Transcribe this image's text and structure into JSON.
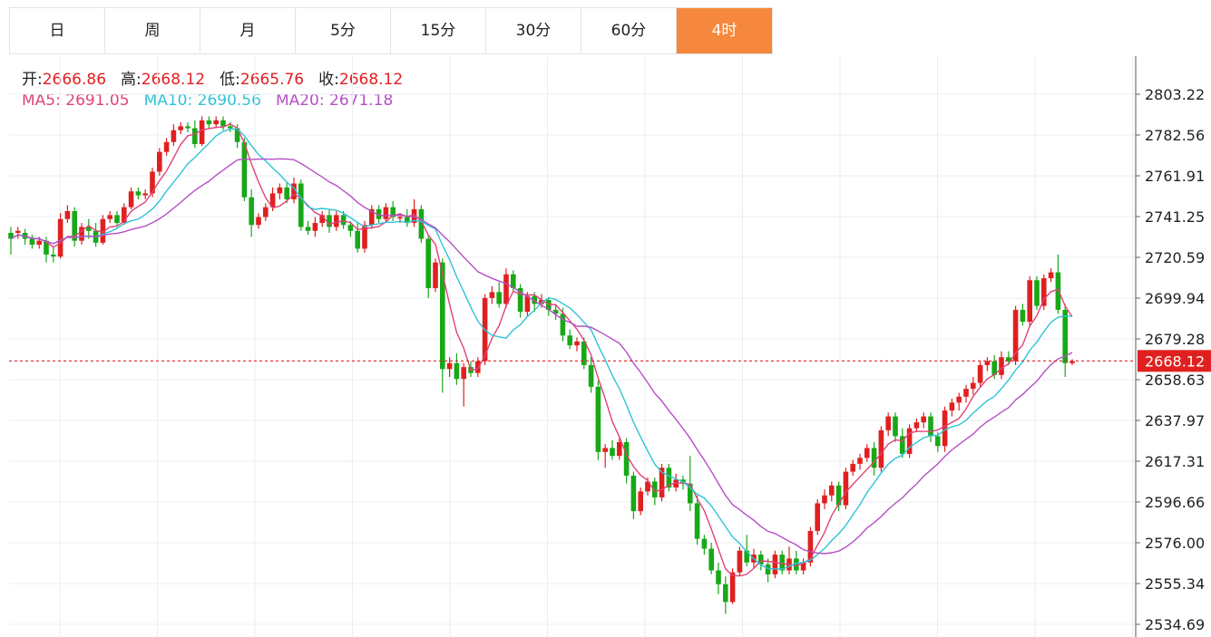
{
  "tabs": [
    {
      "label": "日",
      "active": false
    },
    {
      "label": "周",
      "active": false
    },
    {
      "label": "月",
      "active": false
    },
    {
      "label": "5分",
      "active": false
    },
    {
      "label": "15分",
      "active": false
    },
    {
      "label": "30分",
      "active": false
    },
    {
      "label": "60分",
      "active": false
    },
    {
      "label": "4时",
      "active": true
    }
  ],
  "ohlc_info": {
    "open_label": "开:",
    "open": "2666.86",
    "high_label": "高:",
    "high": "2668.12",
    "low_label": "低:",
    "low": "2665.76",
    "close_label": "收:",
    "close": "2668.12"
  },
  "ma_info": {
    "ma5_label": "MA5:",
    "ma5": "2691.05",
    "ma10_label": "MA10:",
    "ma10": "2690.56",
    "ma20_label": "MA20:",
    "ma20": "2671.18"
  },
  "colors": {
    "up": "#e02020",
    "down": "#18a818",
    "ma5": "#e0427a",
    "ma10": "#2fc3d6",
    "ma20": "#b54fc4",
    "active_tab": "#f5883c",
    "price_line": "#e02020",
    "grid": "#e8eef3"
  },
  "chart_data": {
    "type": "candlestick",
    "y_axis_ticks": [
      2803.22,
      2782.56,
      2761.91,
      2741.25,
      2720.59,
      2699.94,
      2679.28,
      2658.63,
      2637.97,
      2617.31,
      2596.66,
      2576.0,
      2555.34,
      2534.69
    ],
    "ylim": [
      2534.69,
      2803.22
    ],
    "current_price": "2668.12",
    "grid": true,
    "candles": [
      [
        2733,
        2730,
        2736,
        2722
      ],
      [
        2733,
        2734,
        2736,
        2730
      ],
      [
        2733,
        2730,
        2735,
        2727
      ],
      [
        2730,
        2727,
        2732,
        2725
      ],
      [
        2727,
        2729,
        2731,
        2725
      ],
      [
        2729,
        2722,
        2731,
        2718
      ],
      [
        2722,
        2721,
        2726,
        2718
      ],
      [
        2721,
        2740,
        2743,
        2720
      ],
      [
        2740,
        2744,
        2747,
        2738
      ],
      [
        2744,
        2729,
        2746,
        2726
      ],
      [
        2729,
        2736,
        2738,
        2727
      ],
      [
        2736,
        2734,
        2740,
        2730
      ],
      [
        2734,
        2728,
        2738,
        2726
      ],
      [
        2728,
        2740,
        2742,
        2727
      ],
      [
        2740,
        2742,
        2744,
        2738
      ],
      [
        2742,
        2738,
        2744,
        2736
      ],
      [
        2738,
        2746,
        2748,
        2737
      ],
      [
        2746,
        2754,
        2756,
        2745
      ],
      [
        2754,
        2752,
        2756,
        2750
      ],
      [
        2752,
        2753,
        2755,
        2750
      ],
      [
        2753,
        2764,
        2766,
        2751
      ],
      [
        2764,
        2774,
        2776,
        2762
      ],
      [
        2774,
        2779,
        2781,
        2772
      ],
      [
        2779,
        2785,
        2788,
        2777
      ],
      [
        2785,
        2787,
        2789,
        2783
      ],
      [
        2787,
        2786,
        2789,
        2784
      ],
      [
        2786,
        2778,
        2790,
        2776
      ],
      [
        2778,
        2790,
        2792,
        2777
      ],
      [
        2790,
        2788,
        2792,
        2786
      ],
      [
        2788,
        2790,
        2792,
        2786
      ],
      [
        2790,
        2787,
        2792,
        2785
      ],
      [
        2787,
        2786,
        2789,
        2784
      ],
      [
        2786,
        2779,
        2788,
        2776
      ],
      [
        2779,
        2751,
        2781,
        2749
      ],
      [
        2751,
        2737,
        2755,
        2731
      ],
      [
        2737,
        2741,
        2743,
        2735
      ],
      [
        2741,
        2746,
        2748,
        2739
      ],
      [
        2746,
        2753,
        2756,
        2744
      ],
      [
        2753,
        2756,
        2758,
        2750
      ],
      [
        2756,
        2750,
        2759,
        2748
      ],
      [
        2750,
        2758,
        2761,
        2748
      ],
      [
        2758,
        2736,
        2760,
        2734
      ],
      [
        2736,
        2734,
        2739,
        2732
      ],
      [
        2734,
        2738,
        2741,
        2731
      ],
      [
        2738,
        2742,
        2744,
        2736
      ],
      [
        2742,
        2736,
        2745,
        2733
      ],
      [
        2736,
        2742,
        2744,
        2734
      ],
      [
        2742,
        2737,
        2744,
        2735
      ],
      [
        2737,
        2734,
        2739,
        2731
      ],
      [
        2734,
        2725,
        2738,
        2723
      ],
      [
        2725,
        2737,
        2739,
        2723
      ],
      [
        2737,
        2745,
        2747,
        2735
      ],
      [
        2745,
        2740,
        2747,
        2738
      ],
      [
        2740,
        2746,
        2748,
        2738
      ],
      [
        2746,
        2741,
        2749,
        2739
      ],
      [
        2741,
        2741,
        2743,
        2738
      ],
      [
        2741,
        2738,
        2745,
        2736
      ],
      [
        2738,
        2745,
        2750,
        2736
      ],
      [
        2745,
        2730,
        2747,
        2728
      ],
      [
        2730,
        2705,
        2732,
        2700
      ],
      [
        2705,
        2718,
        2720,
        2703
      ],
      [
        2718,
        2664,
        2720,
        2652
      ],
      [
        2664,
        2667,
        2670,
        2660
      ],
      [
        2667,
        2659,
        2672,
        2656
      ],
      [
        2659,
        2665,
        2667,
        2645
      ],
      [
        2665,
        2662,
        2668,
        2660
      ],
      [
        2662,
        2668,
        2670,
        2660
      ],
      [
        2668,
        2700,
        2702,
        2666
      ],
      [
        2700,
        2703,
        2706,
        2697
      ],
      [
        2703,
        2697,
        2708,
        2695
      ],
      [
        2697,
        2712,
        2715,
        2695
      ],
      [
        2712,
        2705,
        2714,
        2703
      ],
      [
        2705,
        2693,
        2707,
        2690
      ],
      [
        2693,
        2701,
        2703,
        2691
      ],
      [
        2701,
        2697,
        2703,
        2693
      ],
      [
        2697,
        2699,
        2702,
        2695
      ],
      [
        2699,
        2694,
        2700,
        2691
      ],
      [
        2694,
        2692,
        2697,
        2689
      ],
      [
        2692,
        2681,
        2695,
        2678
      ],
      [
        2681,
        2676,
        2684,
        2674
      ],
      [
        2676,
        2678,
        2680,
        2673
      ],
      [
        2678,
        2666,
        2680,
        2664
      ],
      [
        2666,
        2655,
        2670,
        2652
      ],
      [
        2655,
        2622,
        2658,
        2618
      ],
      [
        2622,
        2624,
        2626,
        2614
      ],
      [
        2624,
        2620,
        2628,
        2618
      ],
      [
        2620,
        2627,
        2629,
        2618
      ],
      [
        2627,
        2610,
        2629,
        2606
      ],
      [
        2610,
        2592,
        2612,
        2588
      ],
      [
        2592,
        2602,
        2604,
        2590
      ],
      [
        2602,
        2607,
        2609,
        2600
      ],
      [
        2607,
        2599,
        2609,
        2595
      ],
      [
        2599,
        2614,
        2616,
        2597
      ],
      [
        2614,
        2604,
        2616,
        2602
      ],
      [
        2604,
        2608,
        2611,
        2602
      ],
      [
        2608,
        2606,
        2610,
        2603
      ],
      [
        2606,
        2596,
        2620,
        2592
      ],
      [
        2596,
        2578,
        2600,
        2575
      ],
      [
        2578,
        2573,
        2580,
        2570
      ],
      [
        2573,
        2562,
        2576,
        2560
      ],
      [
        2562,
        2555,
        2566,
        2550
      ],
      [
        2555,
        2546,
        2559,
        2540
      ],
      [
        2546,
        2561,
        2563,
        2545
      ],
      [
        2561,
        2572,
        2574,
        2559
      ],
      [
        2572,
        2566,
        2580,
        2564
      ],
      [
        2566,
        2570,
        2573,
        2563
      ],
      [
        2570,
        2565,
        2572,
        2562
      ],
      [
        2565,
        2560,
        2568,
        2556
      ],
      [
        2560,
        2570,
        2572,
        2558
      ],
      [
        2570,
        2562,
        2572,
        2560
      ],
      [
        2562,
        2568,
        2574,
        2560
      ],
      [
        2568,
        2562,
        2572,
        2560
      ],
      [
        2562,
        2566,
        2568,
        2560
      ],
      [
        2566,
        2582,
        2584,
        2564
      ],
      [
        2582,
        2596,
        2598,
        2580
      ],
      [
        2596,
        2600,
        2603,
        2593
      ],
      [
        2600,
        2605,
        2607,
        2597
      ],
      [
        2605,
        2595,
        2607,
        2592
      ],
      [
        2595,
        2612,
        2614,
        2593
      ],
      [
        2612,
        2616,
        2618,
        2610
      ],
      [
        2616,
        2619,
        2621,
        2613
      ],
      [
        2619,
        2624,
        2626,
        2617
      ],
      [
        2624,
        2614,
        2627,
        2610
      ],
      [
        2614,
        2633,
        2635,
        2612
      ],
      [
        2633,
        2640,
        2642,
        2630
      ],
      [
        2640,
        2630,
        2642,
        2627
      ],
      [
        2630,
        2621,
        2634,
        2619
      ],
      [
        2621,
        2634,
        2636,
        2619
      ],
      [
        2634,
        2637,
        2639,
        2632
      ],
      [
        2637,
        2640,
        2642,
        2634
      ],
      [
        2640,
        2630,
        2642,
        2627
      ],
      [
        2630,
        2625,
        2632,
        2622
      ],
      [
        2625,
        2643,
        2645,
        2622
      ],
      [
        2643,
        2647,
        2649,
        2640
      ],
      [
        2647,
        2650,
        2652,
        2643
      ],
      [
        2650,
        2654,
        2656,
        2647
      ],
      [
        2654,
        2657,
        2660,
        2651
      ],
      [
        2657,
        2666,
        2668,
        2655
      ],
      [
        2666,
        2668,
        2670,
        2663
      ],
      [
        2668,
        2661,
        2671,
        2659
      ],
      [
        2661,
        2670,
        2673,
        2659
      ],
      [
        2670,
        2668,
        2673,
        2666
      ],
      [
        2668,
        2694,
        2696,
        2666
      ],
      [
        2694,
        2688,
        2697,
        2686
      ],
      [
        2688,
        2709,
        2711,
        2686
      ],
      [
        2709,
        2696,
        2711,
        2694
      ],
      [
        2696,
        2710,
        2712,
        2694
      ],
      [
        2710,
        2713,
        2715,
        2708
      ],
      [
        2713,
        2694,
        2722,
        2692
      ],
      [
        2694,
        2667,
        2697,
        2660
      ],
      [
        2667,
        2668,
        2669,
        2666
      ]
    ],
    "ma5_current": 2691.05,
    "ma10_current": 2690.56,
    "ma20_current": 2671.18,
    "series": [
      {
        "name": "MA5"
      },
      {
        "name": "MA10"
      },
      {
        "name": "MA20"
      }
    ]
  }
}
